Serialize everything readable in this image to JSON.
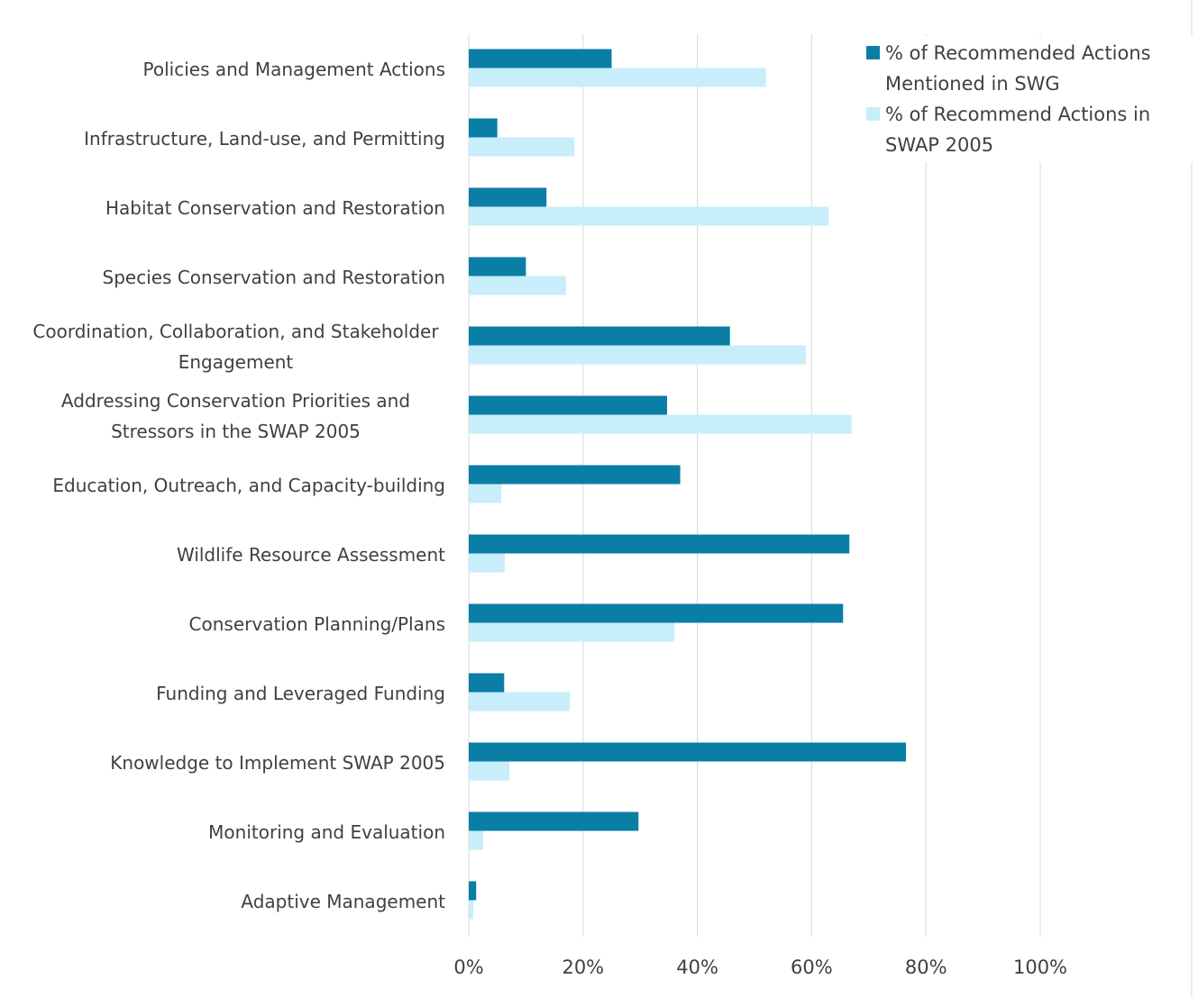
{
  "chart_data": {
    "type": "hbar",
    "categories": [
      "Policies and Management Actions",
      "Infrastructure, Land-use, and Permitting",
      "Habitat Conservation and Restoration",
      "Species Conservation and Restoration",
      "Coordination, Collaboration, and Stakeholder Engagement",
      "Addressing Conservation Priorities and Stressors in the SWAP 2005",
      "Education, Outreach, and Capacity-building",
      "Wildlife Resource Assessment",
      "Conservation Planning/Plans",
      "Funding and Leveraged Funding",
      "Knowledge to Implement SWAP 2005",
      "Monitoring and Evaluation",
      "Adaptive Management"
    ],
    "series": [
      {
        "name": "% of Recommended Actions Mentioned in SWG",
        "color": "#0a7ea4",
        "values": [
          25,
          5,
          13.6,
          10,
          45.7,
          34.7,
          37,
          66.6,
          65.5,
          6.2,
          76.5,
          29.7,
          1.3
        ]
      },
      {
        "name": "% of Recommend Actions in SWAP 2005",
        "color": "#c7eefa",
        "values": [
          52,
          18.5,
          63,
          17,
          59,
          67,
          5.7,
          6.3,
          36,
          17.7,
          7.1,
          2.5,
          0.8
        ]
      }
    ],
    "xlim": [
      0,
      100
    ],
    "xticks": [
      {
        "value": 0,
        "label": "0%"
      },
      {
        "value": 20,
        "label": "20%"
      },
      {
        "value": 40,
        "label": "40%"
      },
      {
        "value": 60,
        "label": "60%"
      },
      {
        "value": 80,
        "label": "80%"
      },
      {
        "value": 100,
        "label": "100%"
      }
    ],
    "grid": true,
    "legend": "top-right"
  }
}
